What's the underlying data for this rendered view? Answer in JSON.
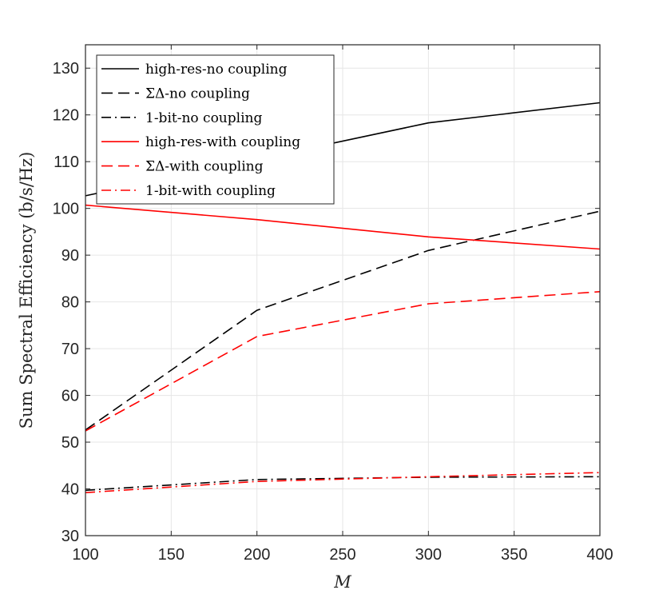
{
  "chart_data": {
    "type": "line",
    "xlabel": "M",
    "ylabel": "Sum Spectral Efficiency (b/s/Hz)",
    "xlim": [
      100,
      400
    ],
    "ylim": [
      30,
      135
    ],
    "xticks": [
      100,
      150,
      200,
      250,
      300,
      350,
      400
    ],
    "yticks": [
      30,
      40,
      50,
      60,
      70,
      80,
      90,
      100,
      110,
      120,
      130
    ],
    "grid": true,
    "legend_position": "top-left",
    "x": [
      100,
      200,
      300,
      400
    ],
    "series": [
      {
        "name": "high-res-no coupling",
        "color": "#000000",
        "dash": "solid",
        "values": [
          102.7,
          110.5,
          118.3,
          122.6
        ]
      },
      {
        "name": "ΣΔ-no coupling",
        "color": "#000000",
        "dash": "dashed",
        "values": [
          52.6,
          78.2,
          91.0,
          99.4
        ]
      },
      {
        "name": "1-bit-no coupling",
        "color": "#000000",
        "dash": "dashdot",
        "values": [
          39.7,
          42.0,
          42.5,
          42.6
        ]
      },
      {
        "name": "high-res-with coupling",
        "color": "#ff0000",
        "dash": "solid",
        "values": [
          100.7,
          97.6,
          93.9,
          91.3
        ]
      },
      {
        "name": "ΣΔ-with coupling",
        "color": "#ff0000",
        "dash": "dashed",
        "values": [
          52.4,
          72.6,
          79.6,
          82.2
        ]
      },
      {
        "name": "1-bit-with coupling",
        "color": "#ff0000",
        "dash": "dashdot",
        "values": [
          39.2,
          41.6,
          42.6,
          43.5
        ]
      }
    ]
  }
}
